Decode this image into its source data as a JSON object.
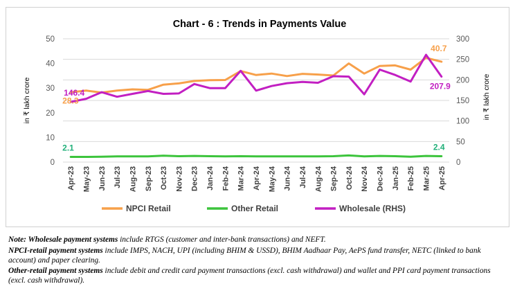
{
  "chart_data": {
    "type": "line",
    "title": "Chart - 6 : Trends in Payments Value",
    "ylabel_left": "in ₹ lakh crore",
    "ylabel_right": "in ₹ lakh crore",
    "ylim_left": [
      0,
      50
    ],
    "yticks_left": [
      "0",
      "10",
      "20",
      "30",
      "40",
      "50"
    ],
    "ylim_right": [
      0,
      300
    ],
    "yticks_right": [
      "0",
      "50",
      "100",
      "150",
      "200",
      "250",
      "300"
    ],
    "grid": true,
    "legend_position": "bottom",
    "categories": [
      "Apr-23",
      "May-23",
      "Jun-23",
      "Jul-23",
      "Aug-23",
      "Sep-23",
      "Oct-23",
      "Nov-23",
      "Dec-23",
      "Jan-24",
      "Feb-24",
      "Mar-24",
      "Apr-24",
      "May-24",
      "Jun-24",
      "Jul-24",
      "Aug-24",
      "Sep-24",
      "Oct-24",
      "Nov-24",
      "Dec-24",
      "Jan-25",
      "Feb-25",
      "Mar-25",
      "Apr-25"
    ],
    "series": [
      {
        "name": "NPCI Retail",
        "axis": "left",
        "color": "#f7a04a",
        "values": [
          28.3,
          29.0,
          28.2,
          29.0,
          29.5,
          29.3,
          31.4,
          31.9,
          32.9,
          33.2,
          33.3,
          36.9,
          35.3,
          35.9,
          34.9,
          35.8,
          35.5,
          35.1,
          40.0,
          35.9,
          39.0,
          39.2,
          37.5,
          42.3,
          40.7
        ]
      },
      {
        "name": "Other Retail",
        "axis": "left",
        "color": "#3cc43c",
        "values": [
          2.1,
          2.1,
          2.2,
          2.3,
          2.3,
          2.3,
          2.6,
          2.4,
          2.5,
          2.4,
          2.3,
          2.4,
          2.3,
          2.3,
          2.3,
          2.3,
          2.3,
          2.4,
          2.7,
          2.3,
          2.5,
          2.4,
          2.2,
          2.5,
          2.4
        ]
      },
      {
        "name": "Wholesale (RHS)",
        "axis": "right",
        "color": "#c21fc2",
        "values": [
          146.4,
          154.0,
          170.0,
          159.0,
          166.0,
          173.0,
          166.0,
          167.0,
          190.0,
          180.0,
          180.0,
          222.0,
          174.0,
          185.0,
          192.0,
          195.0,
          193.0,
          209.0,
          208.0,
          165.0,
          225.0,
          212.0,
          196.0,
          261.0,
          207.9
        ]
      }
    ],
    "data_labels": [
      {
        "series": "Wholesale (RHS)",
        "index": 0,
        "text": "146.4",
        "color": "#c21fc2"
      },
      {
        "series": "NPCI Retail",
        "index": 0,
        "text": "28.3",
        "color": "#f7a04a"
      },
      {
        "series": "Other Retail",
        "index": 0,
        "text": "2.1",
        "color": "#22b07a"
      },
      {
        "series": "NPCI Retail",
        "index": 24,
        "text": "40.7",
        "color": "#f7a04a"
      },
      {
        "series": "Wholesale (RHS)",
        "index": 24,
        "text": "207.9",
        "color": "#c21fc2"
      },
      {
        "series": "Other Retail",
        "index": 24,
        "text": "2.4",
        "color": "#22b07a"
      }
    ]
  },
  "notes": [
    {
      "label": "Note: Wholesale payment systems",
      "text": " include RTGS (customer and inter-bank transactions) and NEFT."
    },
    {
      "label": "NPCI-retail payment systems",
      "text": " include IMPS, NACH, UPI (including BHIM & USSD), BHIM Aadhaar Pay, AePS fund transfer, NETC (linked to bank account) and paper clearing."
    },
    {
      "label": "Other-retail payment systems",
      "text": " include debit and credit card payment transactions (excl. cash withdrawal) and wallet and PPI card payment transactions (excl. cash withdrawal)."
    }
  ]
}
